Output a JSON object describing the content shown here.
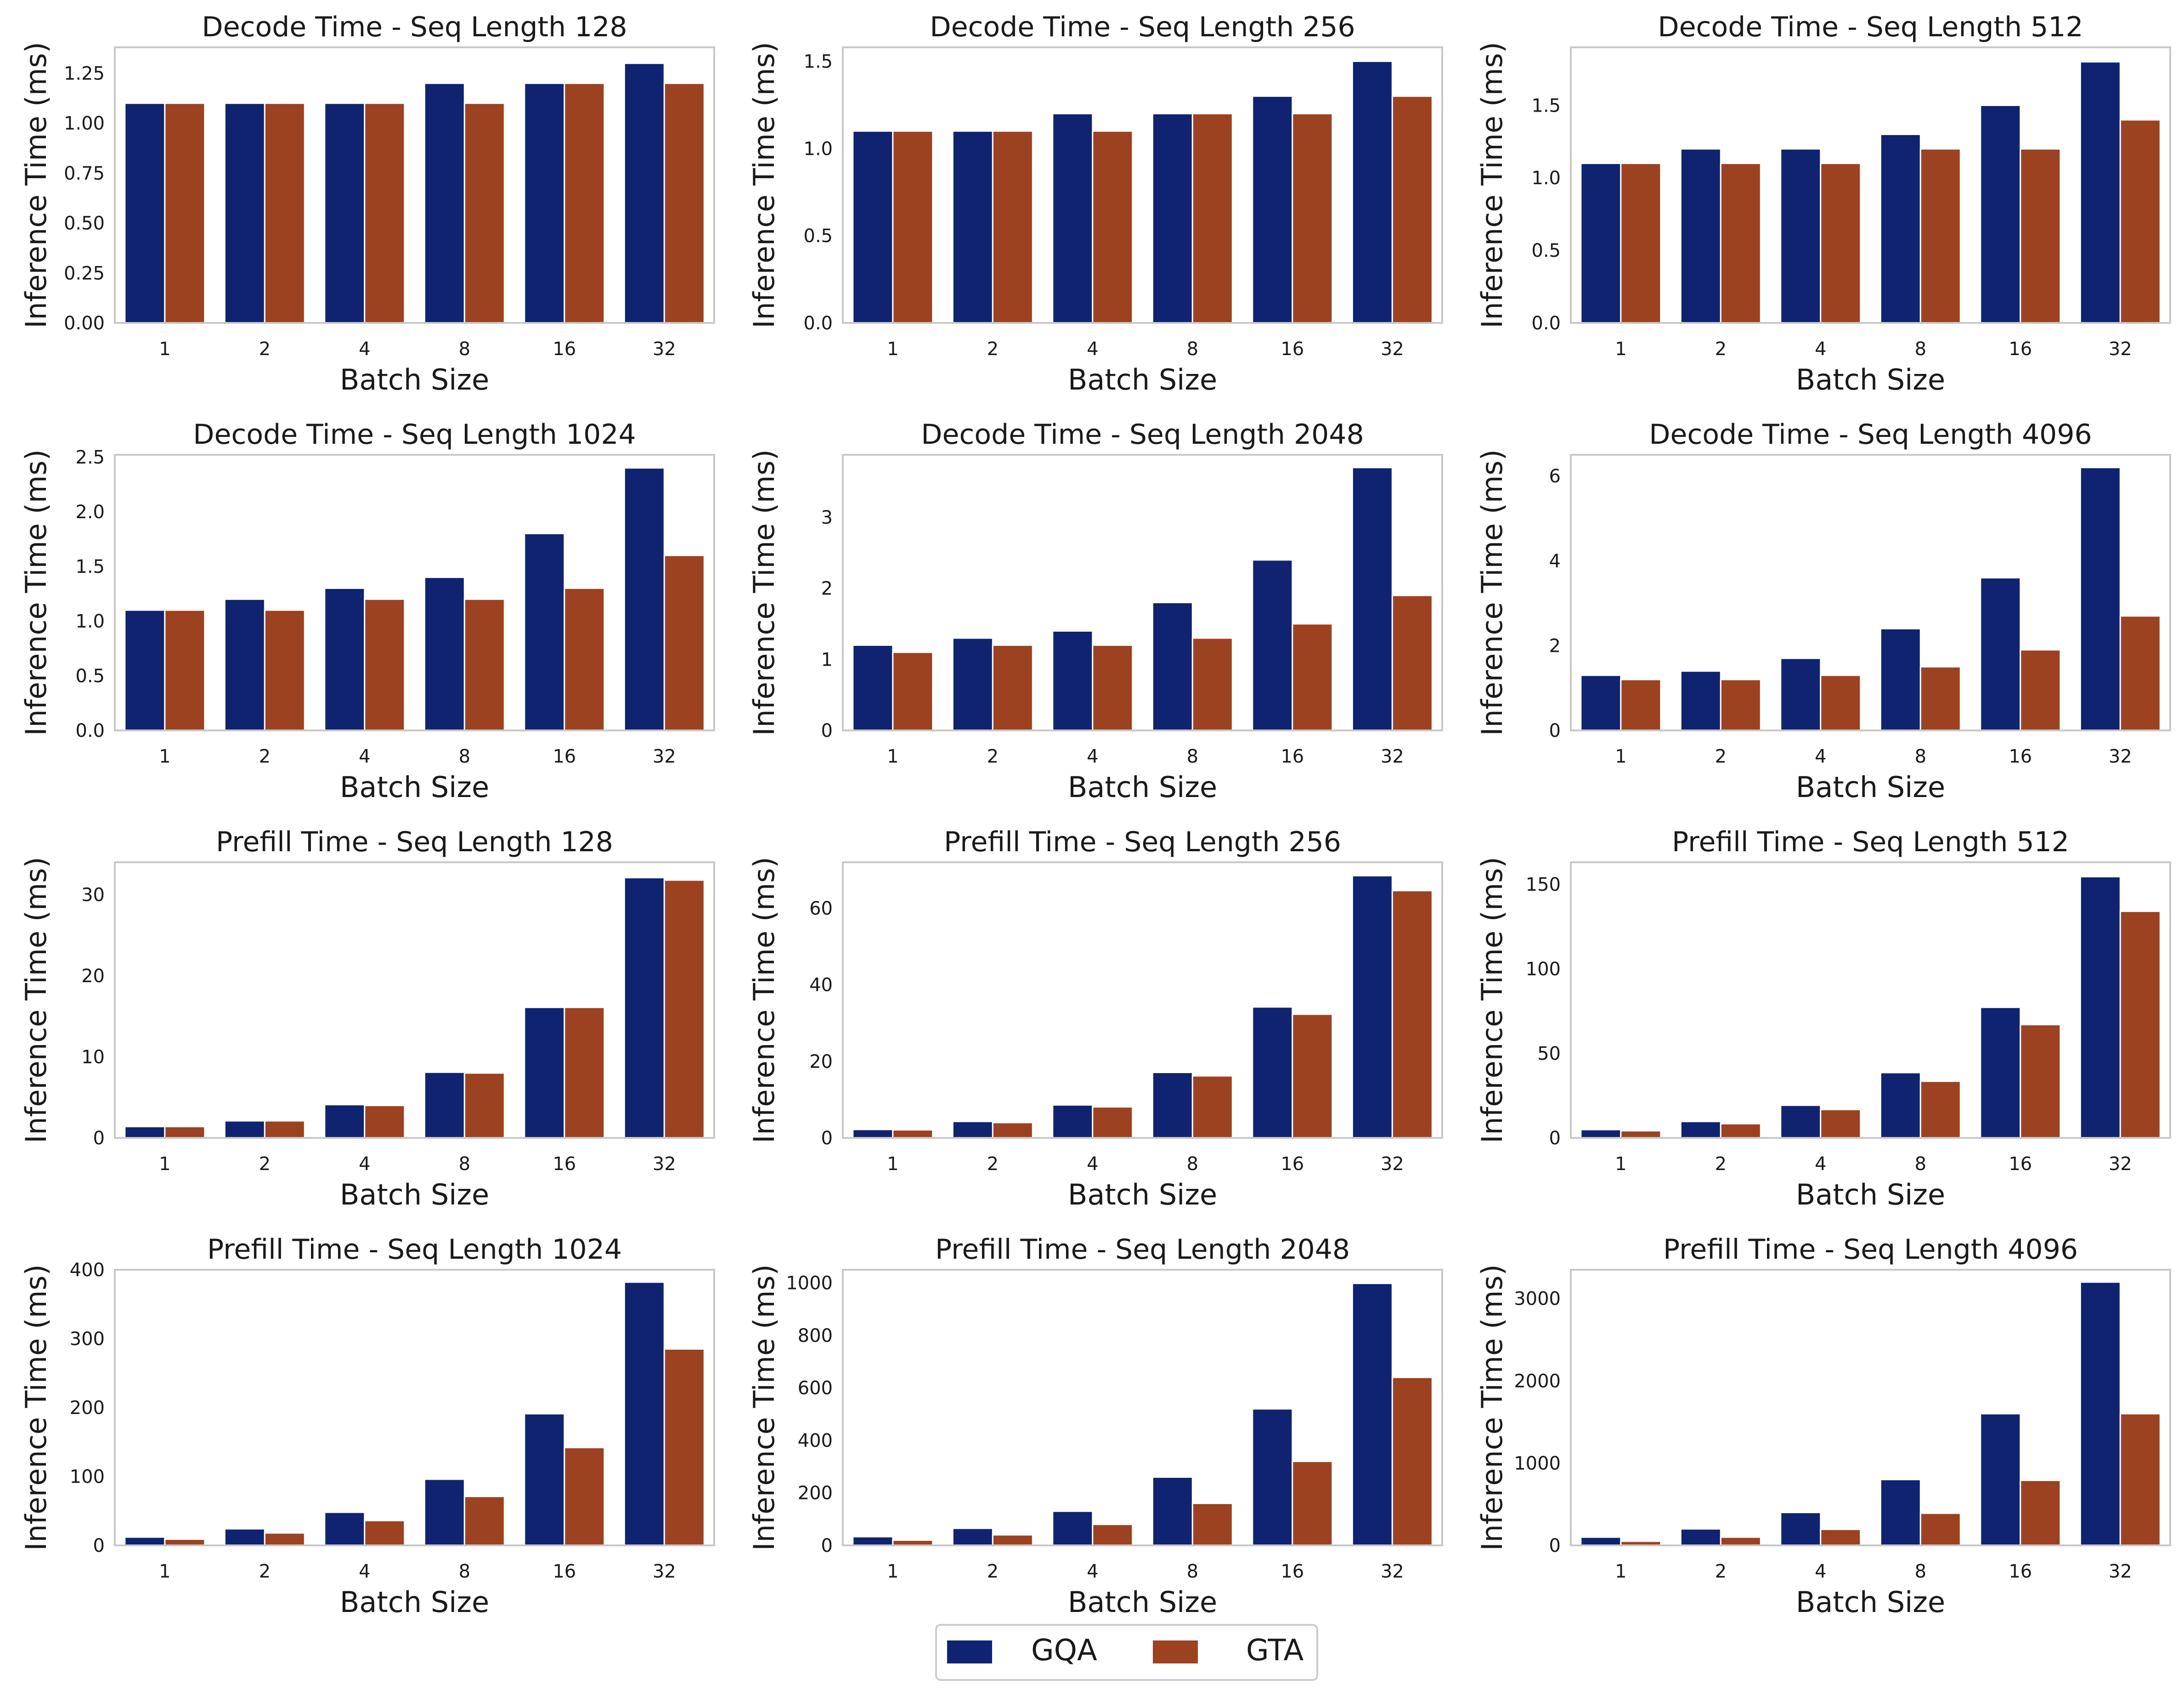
{
  "legend": {
    "placement": "bottom-center",
    "items": [
      {
        "label": "GQA",
        "color": "#0f2370"
      },
      {
        "label": "GTA",
        "color": "#9c4220"
      }
    ]
  },
  "chart_data": [
    {
      "type": "bar",
      "title": "Decode Time - Seq Length 128",
      "xlabel": "Batch Size",
      "ylabel": "Inference Time (ms)",
      "categories": [
        "1",
        "2",
        "4",
        "8",
        "16",
        "32"
      ],
      "ylim": [
        0,
        1.38
      ],
      "yticks": [
        0.0,
        0.25,
        0.5,
        0.75,
        1.0,
        1.25
      ],
      "ytick_labels": [
        "0.00",
        "0.25",
        "0.50",
        "0.75",
        "1.00",
        "1.25"
      ],
      "series": [
        {
          "name": "GQA",
          "values": [
            1.1,
            1.1,
            1.1,
            1.2,
            1.2,
            1.3
          ]
        },
        {
          "name": "GTA",
          "values": [
            1.1,
            1.1,
            1.1,
            1.1,
            1.2,
            1.2
          ]
        }
      ]
    },
    {
      "type": "bar",
      "title": "Decode Time - Seq Length 256",
      "xlabel": "Batch Size",
      "ylabel": "Inference Time (ms)",
      "categories": [
        "1",
        "2",
        "4",
        "8",
        "16",
        "32"
      ],
      "ylim": [
        0,
        1.58
      ],
      "yticks": [
        0.0,
        0.5,
        1.0,
        1.5
      ],
      "ytick_labels": [
        "0.0",
        "0.5",
        "1.0",
        "1.5"
      ],
      "series": [
        {
          "name": "GQA",
          "values": [
            1.1,
            1.1,
            1.2,
            1.2,
            1.3,
            1.5
          ]
        },
        {
          "name": "GTA",
          "values": [
            1.1,
            1.1,
            1.1,
            1.2,
            1.2,
            1.3
          ]
        }
      ]
    },
    {
      "type": "bar",
      "title": "Decode Time - Seq Length 512",
      "xlabel": "Batch Size",
      "ylabel": "Inference Time (ms)",
      "categories": [
        "1",
        "2",
        "4",
        "8",
        "16",
        "32"
      ],
      "ylim": [
        0,
        1.9
      ],
      "yticks": [
        0.0,
        0.5,
        1.0,
        1.5
      ],
      "ytick_labels": [
        "0.0",
        "0.5",
        "1.0",
        "1.5"
      ],
      "series": [
        {
          "name": "GQA",
          "values": [
            1.1,
            1.2,
            1.2,
            1.3,
            1.5,
            1.8
          ]
        },
        {
          "name": "GTA",
          "values": [
            1.1,
            1.1,
            1.1,
            1.2,
            1.2,
            1.4
          ]
        }
      ]
    },
    {
      "type": "bar",
      "title": "Decode Time - Seq Length 1024",
      "xlabel": "Batch Size",
      "ylabel": "Inference Time (ms)",
      "categories": [
        "1",
        "2",
        "4",
        "8",
        "16",
        "32"
      ],
      "ylim": [
        0,
        2.52
      ],
      "yticks": [
        0.0,
        0.5,
        1.0,
        1.5,
        2.0,
        2.5
      ],
      "ytick_labels": [
        "0.0",
        "0.5",
        "1.0",
        "1.5",
        "2.0",
        "2.5"
      ],
      "series": [
        {
          "name": "GQA",
          "values": [
            1.1,
            1.2,
            1.3,
            1.4,
            1.8,
            2.4
          ]
        },
        {
          "name": "GTA",
          "values": [
            1.1,
            1.1,
            1.2,
            1.2,
            1.3,
            1.6
          ]
        }
      ]
    },
    {
      "type": "bar",
      "title": "Decode Time - Seq Length 2048",
      "xlabel": "Batch Size",
      "ylabel": "Inference Time (ms)",
      "categories": [
        "1",
        "2",
        "4",
        "8",
        "16",
        "32"
      ],
      "ylim": [
        0,
        3.88
      ],
      "yticks": [
        0,
        1,
        2,
        3
      ],
      "ytick_labels": [
        "0",
        "1",
        "2",
        "3"
      ],
      "series": [
        {
          "name": "GQA",
          "values": [
            1.2,
            1.3,
            1.4,
            1.8,
            2.4,
            3.7
          ]
        },
        {
          "name": "GTA",
          "values": [
            1.1,
            1.2,
            1.2,
            1.3,
            1.5,
            1.9
          ]
        }
      ]
    },
    {
      "type": "bar",
      "title": "Decode Time - Seq Length 4096",
      "xlabel": "Batch Size",
      "ylabel": "Inference Time (ms)",
      "categories": [
        "1",
        "2",
        "4",
        "8",
        "16",
        "32"
      ],
      "ylim": [
        0,
        6.5
      ],
      "yticks": [
        0,
        2,
        4,
        6
      ],
      "ytick_labels": [
        "0",
        "2",
        "4",
        "6"
      ],
      "series": [
        {
          "name": "GQA",
          "values": [
            1.3,
            1.4,
            1.7,
            2.4,
            3.6,
            6.2
          ]
        },
        {
          "name": "GTA",
          "values": [
            1.2,
            1.2,
            1.3,
            1.5,
            1.9,
            2.7
          ]
        }
      ]
    },
    {
      "type": "bar",
      "title": "Prefill Time - Seq Length 128",
      "xlabel": "Batch Size",
      "ylabel": "Inference Time (ms)",
      "categories": [
        "1",
        "2",
        "4",
        "8",
        "16",
        "32"
      ],
      "ylim": [
        0,
        34
      ],
      "yticks": [
        0,
        10,
        20,
        30
      ],
      "ytick_labels": [
        "0",
        "10",
        "20",
        "30"
      ],
      "series": [
        {
          "name": "GQA",
          "values": [
            1.4,
            2.1,
            4.1,
            8.1,
            16.1,
            32.1
          ]
        },
        {
          "name": "GTA",
          "values": [
            1.4,
            2.1,
            4.0,
            8.0,
            16.1,
            31.8
          ]
        }
      ]
    },
    {
      "type": "bar",
      "title": "Prefill Time - Seq Length 256",
      "xlabel": "Batch Size",
      "ylabel": "Inference Time (ms)",
      "categories": [
        "1",
        "2",
        "4",
        "8",
        "16",
        "32"
      ],
      "ylim": [
        0,
        72
      ],
      "yticks": [
        0,
        20,
        40,
        60
      ],
      "ytick_labels": [
        "0",
        "20",
        "40",
        "60"
      ],
      "series": [
        {
          "name": "GQA",
          "values": [
            2.2,
            4.3,
            8.6,
            17.1,
            34.2,
            68.5
          ]
        },
        {
          "name": "GTA",
          "values": [
            2.1,
            4.0,
            8.1,
            16.2,
            32.3,
            64.6
          ]
        }
      ]
    },
    {
      "type": "bar",
      "title": "Prefill Time - Seq Length 512",
      "xlabel": "Batch Size",
      "ylabel": "Inference Time (ms)",
      "categories": [
        "1",
        "2",
        "4",
        "8",
        "16",
        "32"
      ],
      "ylim": [
        0,
        163
      ],
      "yticks": [
        0,
        50,
        100,
        150
      ],
      "ytick_labels": [
        "0",
        "50",
        "100",
        "150"
      ],
      "series": [
        {
          "name": "GQA",
          "values": [
            4.9,
            9.7,
            19.3,
            38.6,
            77.2,
            154.5
          ]
        },
        {
          "name": "GTA",
          "values": [
            4.2,
            8.4,
            16.8,
            33.5,
            67.0,
            134.0
          ]
        }
      ]
    },
    {
      "type": "bar",
      "title": "Prefill Time - Seq Length 1024",
      "xlabel": "Batch Size",
      "ylabel": "Inference Time (ms)",
      "categories": [
        "1",
        "2",
        "4",
        "8",
        "16",
        "32"
      ],
      "ylim": [
        0,
        400
      ],
      "yticks": [
        0,
        100,
        200,
        300,
        400
      ],
      "ytick_labels": [
        "0",
        "100",
        "200",
        "300",
        "400"
      ],
      "series": [
        {
          "name": "GQA",
          "values": [
            12,
            24,
            48,
            96,
            191,
            382
          ]
        },
        {
          "name": "GTA",
          "values": [
            9,
            18,
            36,
            71,
            142,
            285
          ]
        }
      ]
    },
    {
      "type": "bar",
      "title": "Prefill Time - Seq Length 2048",
      "xlabel": "Batch Size",
      "ylabel": "Inference Time (ms)",
      "categories": [
        "1",
        "2",
        "4",
        "8",
        "16",
        "32"
      ],
      "ylim": [
        0,
        1050
      ],
      "yticks": [
        0,
        200,
        400,
        600,
        800,
        1000
      ],
      "ytick_labels": [
        "0",
        "200",
        "400",
        "600",
        "800",
        "1000"
      ],
      "series": [
        {
          "name": "GQA",
          "values": [
            33,
            65,
            130,
            260,
            520,
            998
          ]
        },
        {
          "name": "GTA",
          "values": [
            20,
            40,
            80,
            160,
            320,
            640
          ]
        }
      ]
    },
    {
      "type": "bar",
      "title": "Prefill Time - Seq Length 4096",
      "xlabel": "Batch Size",
      "ylabel": "Inference Time (ms)",
      "categories": [
        "1",
        "2",
        "4",
        "8",
        "16",
        "32"
      ],
      "ylim": [
        0,
        3350
      ],
      "yticks": [
        0,
        1000,
        2000,
        3000
      ],
      "ytick_labels": [
        "0",
        "1000",
        "2000",
        "3000"
      ],
      "series": [
        {
          "name": "GQA",
          "values": [
            100,
            200,
            400,
            800,
            1600,
            3200
          ]
        },
        {
          "name": "GTA",
          "values": [
            50,
            100,
            195,
            390,
            790,
            1600
          ]
        }
      ]
    }
  ]
}
